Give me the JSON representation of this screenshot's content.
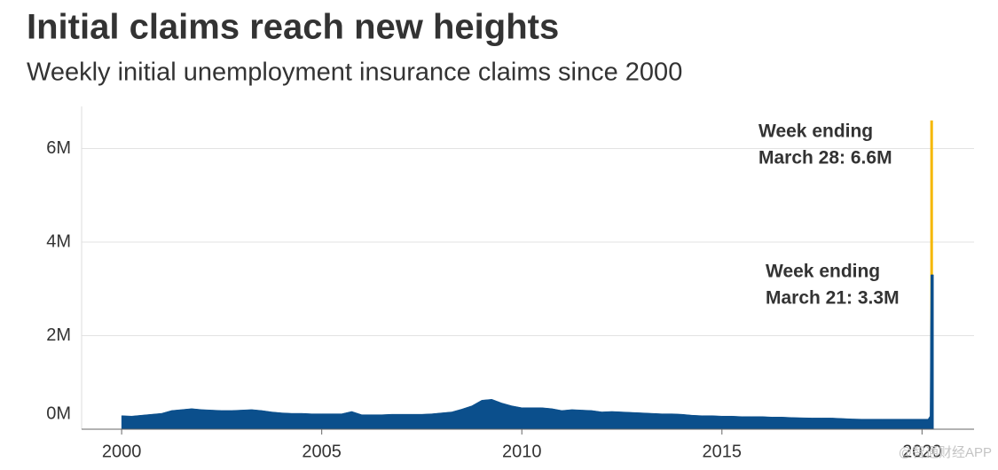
{
  "chart_data": {
    "type": "area",
    "title": "Initial claims reach new heights",
    "subtitle": "Weekly initial unemployment insurance claims since 2000",
    "x": [
      2000,
      2000.25,
      2000.5,
      2000.75,
      2001,
      2001.25,
      2001.5,
      2001.75,
      2002,
      2002.25,
      2002.5,
      2002.75,
      2003,
      2003.25,
      2003.5,
      2003.75,
      2004,
      2004.25,
      2004.5,
      2004.75,
      2005,
      2005.25,
      2005.5,
      2005.75,
      2006,
      2006.25,
      2006.5,
      2006.75,
      2007,
      2007.25,
      2007.5,
      2007.75,
      2008,
      2008.25,
      2008.5,
      2008.75,
      2009,
      2009.25,
      2009.5,
      2009.75,
      2010,
      2010.25,
      2010.5,
      2010.75,
      2011,
      2011.25,
      2011.5,
      2011.75,
      2012,
      2012.25,
      2012.5,
      2012.75,
      2013,
      2013.25,
      2013.5,
      2013.75,
      2014,
      2014.25,
      2014.5,
      2014.75,
      2015,
      2015.25,
      2015.5,
      2015.75,
      2016,
      2016.25,
      2016.5,
      2016.75,
      2017,
      2017.25,
      2017.5,
      2017.75,
      2018,
      2018.25,
      2018.5,
      2018.75,
      2019,
      2019.25,
      2019.5,
      2019.75,
      2020,
      2020.15,
      2020.2,
      2020.22,
      2020.24
    ],
    "values": [
      290000,
      280000,
      300000,
      320000,
      340000,
      400000,
      420000,
      440000,
      420000,
      410000,
      400000,
      400000,
      410000,
      420000,
      400000,
      370000,
      350000,
      340000,
      340000,
      330000,
      330000,
      330000,
      330000,
      380000,
      310000,
      310000,
      310000,
      320000,
      320000,
      320000,
      320000,
      330000,
      350000,
      370000,
      430000,
      500000,
      620000,
      640000,
      560000,
      500000,
      460000,
      460000,
      460000,
      440000,
      400000,
      420000,
      410000,
      400000,
      370000,
      380000,
      370000,
      360000,
      350000,
      340000,
      330000,
      330000,
      320000,
      300000,
      290000,
      290000,
      280000,
      280000,
      270000,
      270000,
      270000,
      260000,
      260000,
      250000,
      245000,
      240000,
      240000,
      240000,
      230000,
      220000,
      215000,
      215000,
      215000,
      215000,
      215000,
      215000,
      215000,
      215000,
      281000,
      3300000,
      6600000
    ],
    "color": "#0b4f8c",
    "highlight_color": "#f5b800",
    "xlim": [
      1999,
      2021.3
    ],
    "ylim": [
      0,
      6900000
    ],
    "xticks": [
      2000,
      2005,
      2010,
      2015,
      2020
    ],
    "yticks": [
      {
        "value": 0,
        "label": "0M"
      },
      {
        "value": 2000000,
        "label": "2M"
      },
      {
        "value": 4000000,
        "label": "4M"
      },
      {
        "value": 6000000,
        "label": "6M"
      }
    ],
    "grid": true,
    "annotations": [
      {
        "lines": [
          "Week ending",
          "March 28: 6.6M"
        ]
      },
      {
        "lines": [
          "Week ending",
          "March 21: 3.3M"
        ]
      }
    ],
    "watermark": "@智通财经APP"
  }
}
